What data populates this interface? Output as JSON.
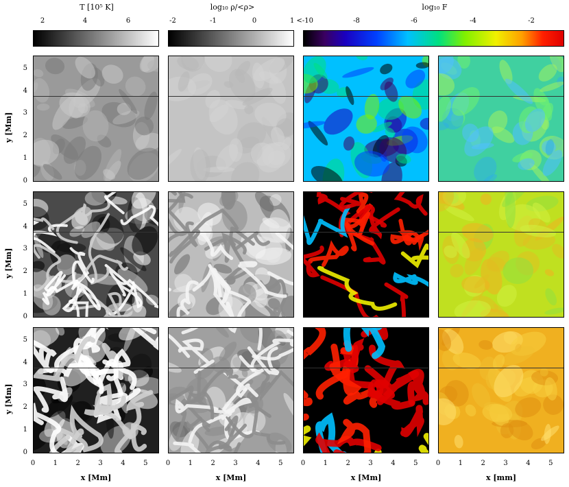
{
  "colorbars": [
    {
      "title": "T [10⁵ K]",
      "ticks": [
        "2",
        "4",
        "6"
      ],
      "tick_fracs": [
        0.08,
        0.42,
        0.76
      ],
      "kind": "gray"
    },
    {
      "title": "log₁₀ ρ/<ρ>",
      "ticks": [
        "-2",
        "-1",
        "0",
        "1 <-10"
      ],
      "tick_fracs": [
        0.02,
        0.33,
        0.66,
        0.99
      ],
      "kind": "gray"
    },
    {
      "title": "log₁₀ F",
      "ticks": [
        "-8",
        "-6",
        "-4",
        "-2"
      ],
      "tick_fracs": [
        0.2,
        0.42,
        0.64,
        0.86
      ],
      "kind": "rainbow"
    }
  ],
  "axes": {
    "ylabel": "y [Mm]",
    "yticks": [
      "0",
      "1",
      "2",
      "3",
      "4",
      "5"
    ],
    "xticks": [
      "0",
      "1",
      "2",
      "3",
      "4",
      "5"
    ],
    "xlabels": [
      "x [Mm]",
      "x [Mm]",
      "x [Mm]",
      "x [mm]"
    ],
    "xrange": [
      0,
      5.6
    ],
    "yrange": [
      0,
      5.6
    ]
  },
  "panels": {
    "rows": 3,
    "cols": 4,
    "cut_line_y": 3.8
  },
  "colors": {
    "rainbow": [
      "#000000",
      "#3a0060",
      "#1a00c0",
      "#0040ff",
      "#00c0ff",
      "#00e080",
      "#80f000",
      "#f0f000",
      "#ffa000",
      "#ff2000",
      "#e00000"
    ]
  }
}
